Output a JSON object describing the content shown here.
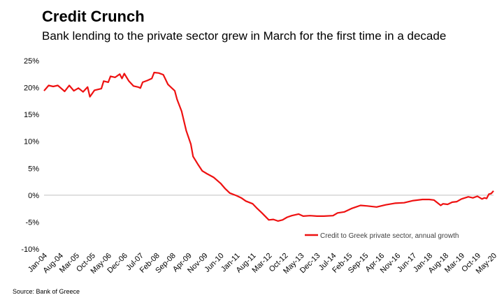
{
  "header": {
    "title": "Credit Crunch",
    "subtitle": "Bank lending to the private sector grew in March for the first time in a decade"
  },
  "footer": {
    "source": "Source: Bank of Greece"
  },
  "colors": {
    "series": "#ee1111",
    "axis": "#bfbfbf",
    "text": "#000000"
  },
  "chart_data": {
    "type": "line",
    "title": "Credit Crunch",
    "subtitle": "Bank lending to the private sector grew in March for the first time in a decade",
    "xlabel": "",
    "ylabel": "",
    "ylim": [
      -10,
      25
    ],
    "y_ticks": [
      "25%",
      "20%",
      "15%",
      "10%",
      "5%",
      "0%",
      "-5%",
      "-10%"
    ],
    "y_tick_values": [
      25,
      20,
      15,
      10,
      5,
      0,
      -5,
      -10
    ],
    "x_range": [
      "Jan-04",
      "May-20"
    ],
    "x_tick_labels": [
      "Jan-04",
      "Aug-04",
      "Mar-05",
      "Oct-05",
      "May-06",
      "Dec-06",
      "Jul-07",
      "Feb-08",
      "Sep-08",
      "Apr-09",
      "Nov-09",
      "Jun-10",
      "Jan-11",
      "Aug-11",
      "Mar-12",
      "Oct-12",
      "May-13",
      "Dec-13",
      "Jul-14",
      "Feb-15",
      "Sep-15",
      "Apr-16",
      "Nov-16",
      "Jun-17",
      "Jan-18",
      "Aug-18",
      "Mar-19",
      "Oct-19",
      "May-20"
    ],
    "grid": false,
    "legend_position": "bottom-right",
    "series": [
      {
        "name": "Credit to Greek private sector, annual growth",
        "color": "#ee1111",
        "points": [
          [
            "Jan-04",
            19.4
          ],
          [
            "Mar-04",
            20.4
          ],
          [
            "May-04",
            20.2
          ],
          [
            "Jul-04",
            20.4
          ],
          [
            "Oct-04",
            19.3
          ],
          [
            "Dec-04",
            20.4
          ],
          [
            "Feb-05",
            19.4
          ],
          [
            "Apr-05",
            19.9
          ],
          [
            "Jun-05",
            19.2
          ],
          [
            "Aug-05",
            20.1
          ],
          [
            "Sep-05",
            18.3
          ],
          [
            "Nov-05",
            19.5
          ],
          [
            "Feb-06",
            19.8
          ],
          [
            "Mar-06",
            21.2
          ],
          [
            "May-06",
            21.0
          ],
          [
            "Jun-06",
            22.1
          ],
          [
            "Aug-06",
            21.9
          ],
          [
            "Oct-06",
            22.5
          ],
          [
            "Nov-06",
            21.7
          ],
          [
            "Dec-06",
            22.6
          ],
          [
            "Feb-07",
            21.2
          ],
          [
            "Apr-07",
            20.3
          ],
          [
            "Jun-07",
            20.1
          ],
          [
            "Jul-07",
            19.9
          ],
          [
            "Aug-07",
            21.0
          ],
          [
            "Oct-07",
            21.3
          ],
          [
            "Dec-07",
            21.7
          ],
          [
            "Jan-08",
            22.8
          ],
          [
            "Mar-08",
            22.7
          ],
          [
            "May-08",
            22.4
          ],
          [
            "Jul-08",
            20.6
          ],
          [
            "Aug-08",
            20.2
          ],
          [
            "Oct-08",
            19.4
          ],
          [
            "Nov-08",
            17.8
          ],
          [
            "Jan-09",
            15.6
          ],
          [
            "Mar-09",
            12.0
          ],
          [
            "May-09",
            9.5
          ],
          [
            "Jun-09",
            7.2
          ],
          [
            "Aug-09",
            5.8
          ],
          [
            "Oct-09",
            4.5
          ],
          [
            "Dec-09",
            4.0
          ],
          [
            "Mar-10",
            3.3
          ],
          [
            "Jun-10",
            2.2
          ],
          [
            "Aug-10",
            1.2
          ],
          [
            "Oct-10",
            0.4
          ],
          [
            "Jan-11",
            -0.1
          ],
          [
            "Mar-11",
            -0.5
          ],
          [
            "May-11",
            -1.1
          ],
          [
            "Aug-11",
            -1.6
          ],
          [
            "Oct-11",
            -2.5
          ],
          [
            "Dec-11",
            -3.3
          ],
          [
            "Mar-12",
            -4.6
          ],
          [
            "May-12",
            -4.5
          ],
          [
            "Jul-12",
            -4.8
          ],
          [
            "Sep-12",
            -4.6
          ],
          [
            "Nov-12",
            -4.1
          ],
          [
            "Jan-13",
            -3.8
          ],
          [
            "Apr-13",
            -3.5
          ],
          [
            "Jun-13",
            -3.9
          ],
          [
            "Sep-13",
            -3.8
          ],
          [
            "Dec-13",
            -3.9
          ],
          [
            "Mar-14",
            -3.9
          ],
          [
            "Jul-14",
            -3.8
          ],
          [
            "Sep-14",
            -3.3
          ],
          [
            "Dec-14",
            -3.1
          ],
          [
            "Mar-15",
            -2.5
          ],
          [
            "Jul-15",
            -1.9
          ],
          [
            "Oct-15",
            -2.0
          ],
          [
            "Feb-16",
            -2.2
          ],
          [
            "Jun-16",
            -1.8
          ],
          [
            "Oct-16",
            -1.5
          ],
          [
            "Feb-17",
            -1.4
          ],
          [
            "Jun-17",
            -1.0
          ],
          [
            "Oct-17",
            -0.8
          ],
          [
            "Jan-18",
            -0.8
          ],
          [
            "Mar-18",
            -0.9
          ],
          [
            "Jun-18",
            -1.9
          ],
          [
            "Jul-18",
            -1.6
          ],
          [
            "Sep-18",
            -1.7
          ],
          [
            "Nov-18",
            -1.3
          ],
          [
            "Jan-19",
            -1.2
          ],
          [
            "Mar-19",
            -0.7
          ],
          [
            "Jun-19",
            -0.3
          ],
          [
            "Aug-19",
            -0.5
          ],
          [
            "Oct-19",
            -0.2
          ],
          [
            "Dec-19",
            -0.7
          ],
          [
            "Jan-20",
            -0.5
          ],
          [
            "Feb-20",
            -0.6
          ],
          [
            "Mar-20",
            0.2
          ],
          [
            "Apr-20",
            0.3
          ],
          [
            "May-20",
            0.8
          ]
        ]
      }
    ]
  }
}
